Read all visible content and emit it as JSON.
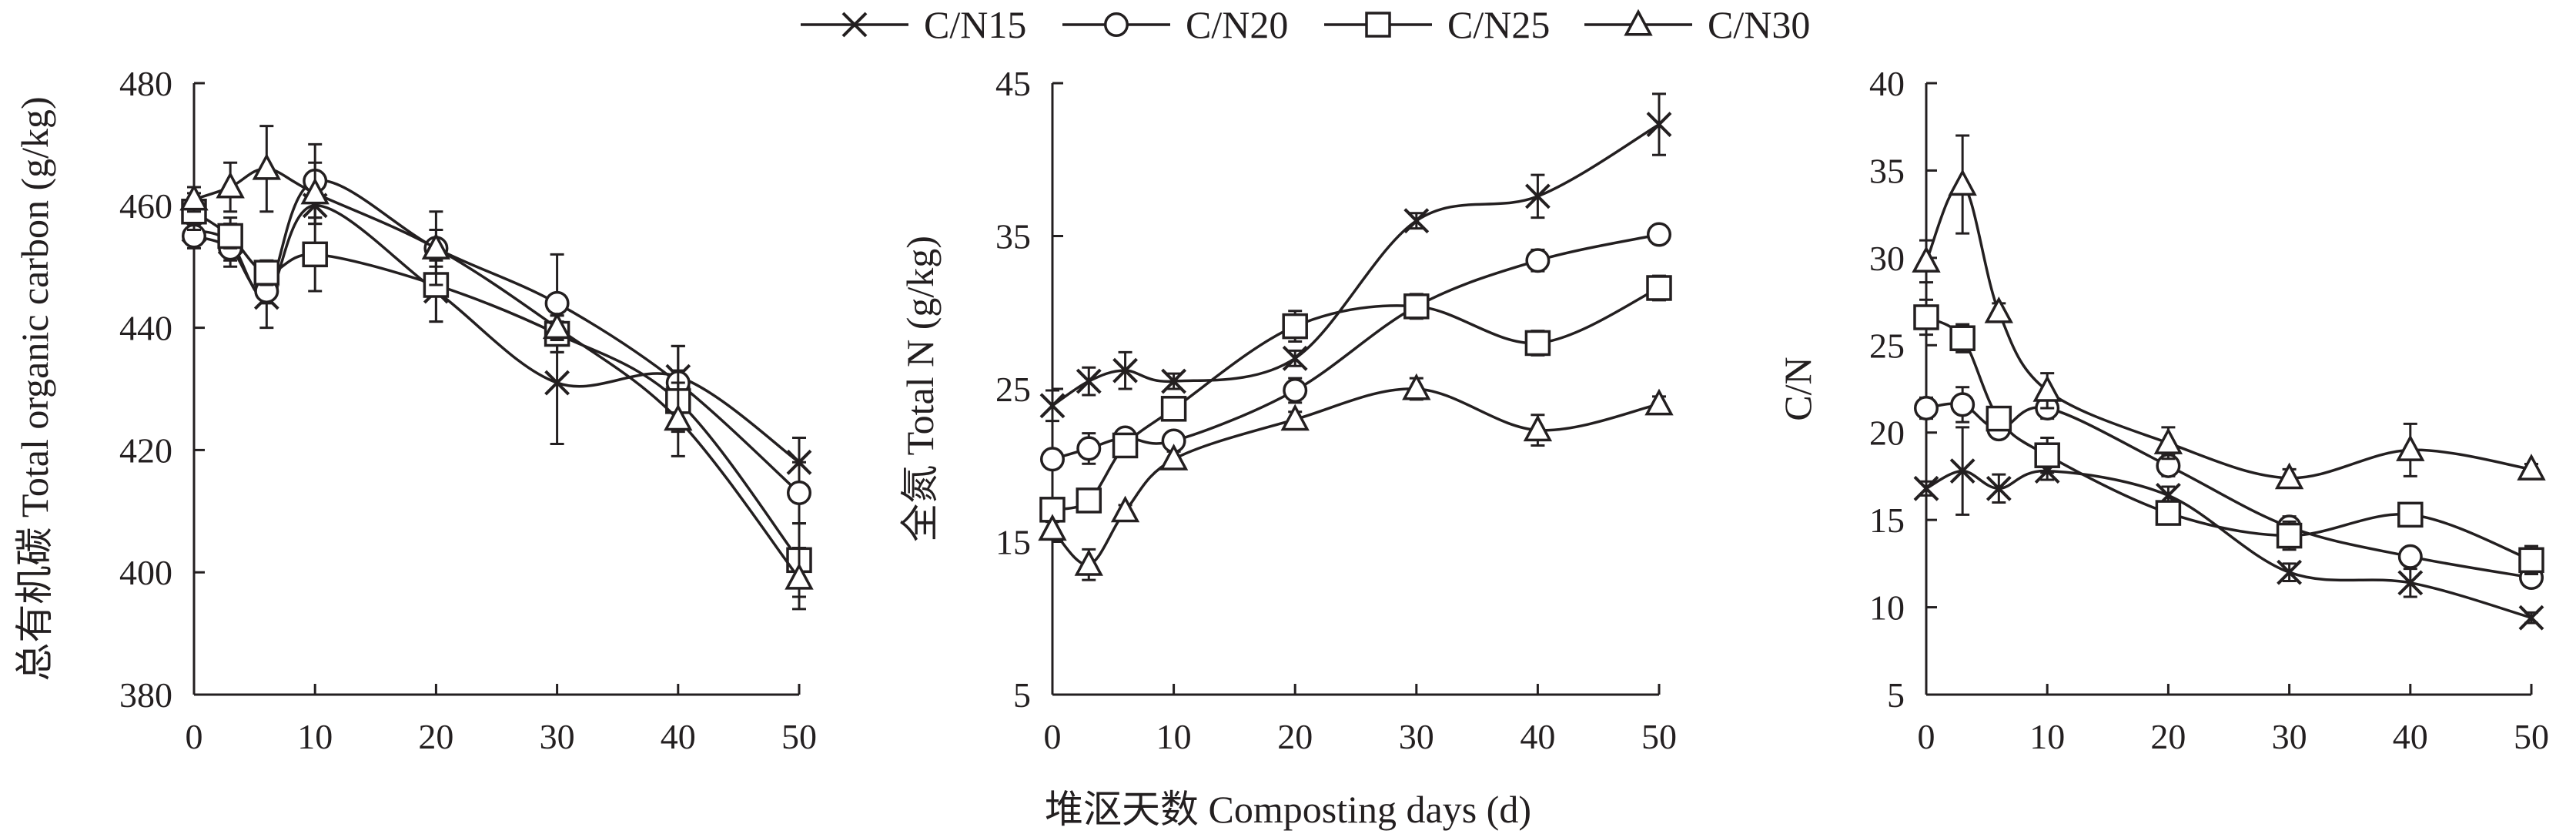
{
  "legend": {
    "items": [
      {
        "label": "C/N15",
        "marker": "x"
      },
      {
        "label": "C/N20",
        "marker": "circle"
      },
      {
        "label": "C/N25",
        "marker": "square"
      },
      {
        "label": "C/N30",
        "marker": "triangle"
      }
    ],
    "placement": "top-center"
  },
  "xlabel": "堆沤天数 Composting days (d)",
  "colors": {
    "ink": "#231f20",
    "marker_fill": "#ffffff",
    "background": "#ffffff"
  },
  "chart_data": [
    {
      "type": "line",
      "ylabel": "总有机碳 Total organic carbon (g/kg)",
      "xlim": [
        0,
        50
      ],
      "ylim": [
        380,
        480
      ],
      "xticks": [
        0,
        10,
        20,
        30,
        40,
        50
      ],
      "yticks": [
        380,
        400,
        420,
        440,
        460,
        480
      ],
      "grid": false,
      "x": [
        0,
        3,
        6,
        10,
        20,
        30,
        40,
        50
      ],
      "series": [
        {
          "name": "C/N15",
          "values": [
            456,
            454,
            445,
            460,
            446,
            431,
            432,
            418
          ],
          "errors": [
            2,
            4,
            5,
            3,
            5,
            10,
            5,
            4
          ]
        },
        {
          "name": "C/N20",
          "values": [
            455,
            453,
            446,
            464,
            453,
            444,
            431,
            413
          ],
          "errors": [
            2,
            2,
            2,
            6,
            3,
            8,
            6,
            5
          ]
        },
        {
          "name": "C/N25",
          "values": [
            459,
            455,
            449,
            452,
            447,
            439,
            428,
            402
          ],
          "errors": [
            3,
            2,
            2,
            6,
            6,
            3,
            5,
            6
          ]
        },
        {
          "name": "C/N30",
          "values": [
            461,
            463,
            466,
            462,
            453,
            440,
            425,
            399
          ],
          "errors": [
            2,
            4,
            7,
            5,
            6,
            2,
            6,
            5
          ]
        }
      ]
    },
    {
      "type": "line",
      "ylabel": "全氮 Total N (g/kg)",
      "xlim": [
        0,
        50
      ],
      "ylim": [
        5,
        45
      ],
      "xticks": [
        0,
        10,
        20,
        30,
        40,
        50
      ],
      "yticks": [
        5,
        15,
        25,
        35,
        45
      ],
      "grid": false,
      "x": [
        0,
        3,
        6,
        10,
        20,
        30,
        40,
        50
      ],
      "series": [
        {
          "name": "C/N15",
          "values": [
            23.9,
            25.5,
            26.2,
            25.5,
            27.0,
            36.0,
            37.6,
            42.3
          ],
          "errors": [
            1.0,
            0.9,
            1.2,
            0.5,
            0.5,
            0.5,
            1.4,
            2.0
          ]
        },
        {
          "name": "C/N20",
          "values": [
            20.4,
            21.1,
            21.8,
            21.6,
            24.9,
            30.4,
            33.4,
            35.1
          ],
          "errors": [
            0.6,
            1.0,
            0.5,
            0.5,
            0.8,
            0.6,
            0.7,
            0.3
          ]
        },
        {
          "name": "C/N25",
          "values": [
            17.1,
            17.7,
            21.3,
            23.7,
            29.1,
            30.4,
            28.0,
            31.6
          ],
          "errors": [
            0.5,
            0.5,
            0.5,
            0.6,
            1.0,
            0.8,
            0.8,
            0.8
          ]
        },
        {
          "name": "C/N30",
          "values": [
            15.8,
            13.5,
            17.0,
            20.4,
            23.0,
            25.0,
            22.3,
            24.0
          ],
          "errors": [
            0.5,
            1.0,
            0.4,
            0.5,
            0.5,
            0.7,
            1.0,
            0.5
          ]
        }
      ]
    },
    {
      "type": "line",
      "ylabel": "C/N",
      "xlim": [
        0,
        50
      ],
      "ylim": [
        5,
        40
      ],
      "xticks": [
        0,
        10,
        20,
        30,
        40,
        50
      ],
      "yticks": [
        5,
        10,
        15,
        20,
        25,
        30,
        35,
        40
      ],
      "grid": false,
      "x": [
        0,
        3,
        6,
        10,
        20,
        30,
        40,
        50
      ],
      "series": [
        {
          "name": "C/N15",
          "values": [
            16.8,
            17.8,
            16.8,
            17.8,
            16.4,
            12.0,
            11.4,
            9.4
          ],
          "errors": [
            0.4,
            2.5,
            0.8,
            0.5,
            0.5,
            0.5,
            0.8,
            0.3
          ]
        },
        {
          "name": "C/N20",
          "values": [
            21.4,
            21.6,
            20.2,
            21.4,
            18.1,
            14.6,
            12.9,
            11.7
          ],
          "errors": [
            0.6,
            1.0,
            0.5,
            0.6,
            0.6,
            0.6,
            0.4,
            0.5
          ]
        },
        {
          "name": "C/N25",
          "values": [
            26.6,
            25.4,
            20.8,
            18.7,
            15.4,
            14.1,
            15.3,
            12.7
          ],
          "errors": [
            1.0,
            0.8,
            0.6,
            1.0,
            0.6,
            0.8,
            0.5,
            0.8
          ]
        },
        {
          "name": "C/N30",
          "values": [
            29.8,
            34.2,
            26.9,
            22.4,
            19.4,
            17.4,
            19.0,
            17.9
          ],
          "errors": [
            1.2,
            2.8,
            0.5,
            1.0,
            0.9,
            0.5,
            1.5,
            0.3
          ]
        }
      ]
    }
  ]
}
